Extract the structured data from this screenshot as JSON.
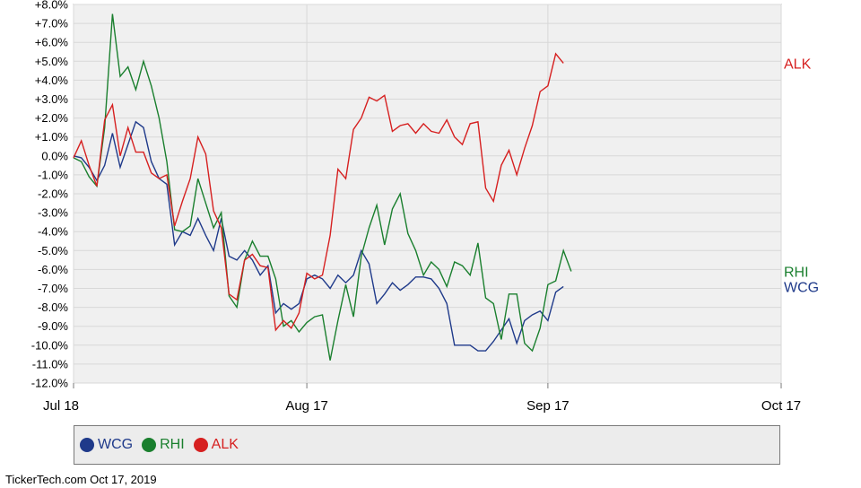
{
  "chart_data": {
    "type": "line",
    "ylim": [
      -12,
      8
    ],
    "y_ticks": [
      "+8.0%",
      "+7.0%",
      "+6.0%",
      "+5.0%",
      "+4.0%",
      "+3.0%",
      "+2.0%",
      "+1.0%",
      "0.0%",
      "-1.0%",
      "-2.0%",
      "-3.0%",
      "-4.0%",
      "-5.0%",
      "-6.0%",
      "-7.0%",
      "-8.0%",
      "-9.0%",
      "-10.0%",
      "-11.0%",
      "-12.0%"
    ],
    "x_ticks": [
      {
        "label": "Jul 18",
        "x": 0
      },
      {
        "label": "Aug 17",
        "x": 30
      },
      {
        "label": "Sep 17",
        "x": 61
      },
      {
        "label": "Oct 17",
        "x": 91
      }
    ],
    "grid": true,
    "series": [
      {
        "name": "WCG",
        "color": "#1f3a8a",
        "points": [
          [
            0,
            0
          ],
          [
            1,
            -0.1
          ],
          [
            2,
            -0.6
          ],
          [
            3,
            -1.3
          ],
          [
            4,
            -0.5
          ],
          [
            5,
            1.2
          ],
          [
            6,
            -0.6
          ],
          [
            7,
            0.6
          ],
          [
            8,
            1.8
          ],
          [
            9,
            1.5
          ],
          [
            10,
            -0.3
          ],
          [
            11,
            -1.2
          ],
          [
            12,
            -1.5
          ],
          [
            13,
            -4.7
          ],
          [
            14,
            -4.0
          ],
          [
            15,
            -4.2
          ],
          [
            16,
            -3.3
          ],
          [
            17,
            -4.2
          ],
          [
            18,
            -5.0
          ],
          [
            19,
            -3.3
          ],
          [
            20,
            -5.3
          ],
          [
            21,
            -5.5
          ],
          [
            22,
            -5.0
          ],
          [
            23,
            -5.5
          ],
          [
            24,
            -6.3
          ],
          [
            25,
            -5.8
          ],
          [
            26,
            -8.3
          ],
          [
            27,
            -7.8
          ],
          [
            28,
            -8.1
          ],
          [
            29,
            -7.8
          ],
          [
            30,
            -6.5
          ],
          [
            31,
            -6.3
          ],
          [
            32,
            -6.5
          ],
          [
            33,
            -7.0
          ],
          [
            34,
            -6.3
          ],
          [
            35,
            -6.7
          ],
          [
            36,
            -6.3
          ],
          [
            37,
            -5.0
          ],
          [
            38,
            -5.7
          ],
          [
            39,
            -7.8
          ],
          [
            40,
            -7.3
          ],
          [
            41,
            -6.7
          ],
          [
            42,
            -7.1
          ],
          [
            43,
            -6.8
          ],
          [
            44,
            -6.4
          ],
          [
            45,
            -6.4
          ],
          [
            46,
            -6.5
          ],
          [
            47,
            -7.0
          ],
          [
            48,
            -7.8
          ],
          [
            49,
            -10.0
          ],
          [
            50,
            -10.0
          ],
          [
            51,
            -10.0
          ],
          [
            52,
            -10.3
          ],
          [
            53,
            -10.3
          ],
          [
            54,
            -9.8
          ],
          [
            55,
            -9.2
          ],
          [
            56,
            -8.6
          ],
          [
            57,
            -9.9
          ],
          [
            58,
            -8.7
          ],
          [
            59,
            -8.4
          ],
          [
            60,
            -8.2
          ],
          [
            61,
            -8.7
          ],
          [
            62,
            -7.2
          ],
          [
            63,
            -6.9
          ]
        ]
      },
      {
        "name": "RHI",
        "color": "#1a7f2e",
        "points": [
          [
            0,
            -0.1
          ],
          [
            1,
            -0.3
          ],
          [
            2,
            -1.1
          ],
          [
            3,
            -1.6
          ],
          [
            4,
            1.5
          ],
          [
            5,
            7.5
          ],
          [
            6,
            4.2
          ],
          [
            7,
            4.7
          ],
          [
            8,
            3.5
          ],
          [
            9,
            5.0
          ],
          [
            10,
            3.7
          ],
          [
            11,
            2.0
          ],
          [
            12,
            -0.3
          ],
          [
            13,
            -3.9
          ],
          [
            14,
            -4.0
          ],
          [
            15,
            -3.7
          ],
          [
            16,
            -1.2
          ],
          [
            17,
            -2.5
          ],
          [
            18,
            -3.8
          ],
          [
            19,
            -3.0
          ],
          [
            20,
            -7.4
          ],
          [
            21,
            -8.0
          ],
          [
            22,
            -5.5
          ],
          [
            23,
            -4.5
          ],
          [
            24,
            -5.3
          ],
          [
            25,
            -5.3
          ],
          [
            26,
            -6.5
          ],
          [
            27,
            -9.0
          ],
          [
            28,
            -8.7
          ],
          [
            29,
            -9.3
          ],
          [
            30,
            -8.8
          ],
          [
            31,
            -8.5
          ],
          [
            32,
            -8.4
          ],
          [
            33,
            -10.8
          ],
          [
            34,
            -8.7
          ],
          [
            35,
            -6.8
          ],
          [
            36,
            -8.5
          ],
          [
            37,
            -5.3
          ],
          [
            38,
            -3.8
          ],
          [
            39,
            -2.6
          ],
          [
            40,
            -4.7
          ],
          [
            41,
            -2.8
          ],
          [
            42,
            -2.0
          ],
          [
            43,
            -4.1
          ],
          [
            44,
            -5.0
          ],
          [
            45,
            -6.3
          ],
          [
            46,
            -5.6
          ],
          [
            47,
            -6.0
          ],
          [
            48,
            -6.9
          ],
          [
            49,
            -5.6
          ],
          [
            50,
            -5.8
          ],
          [
            51,
            -6.3
          ],
          [
            52,
            -4.6
          ],
          [
            53,
            -7.5
          ],
          [
            54,
            -7.8
          ],
          [
            55,
            -9.7
          ],
          [
            56,
            -7.3
          ],
          [
            57,
            -7.3
          ],
          [
            58,
            -9.9
          ],
          [
            59,
            -10.3
          ],
          [
            60,
            -9.1
          ],
          [
            61,
            -6.8
          ],
          [
            62,
            -6.6
          ],
          [
            63,
            -5.0
          ],
          [
            64,
            -6.1
          ]
        ]
      },
      {
        "name": "ALK",
        "color": "#d62020",
        "points": [
          [
            0,
            -0.1
          ],
          [
            1,
            0.8
          ],
          [
            2,
            -0.5
          ],
          [
            3,
            -1.6
          ],
          [
            4,
            1.9
          ],
          [
            5,
            2.7
          ],
          [
            6,
            0.0
          ],
          [
            7,
            1.5
          ],
          [
            8,
            0.2
          ],
          [
            9,
            0.2
          ],
          [
            10,
            -0.9
          ],
          [
            11,
            -1.2
          ],
          [
            12,
            -1.0
          ],
          [
            13,
            -3.7
          ],
          [
            14,
            -2.4
          ],
          [
            15,
            -1.2
          ],
          [
            16,
            1.0
          ],
          [
            17,
            0.1
          ],
          [
            18,
            -2.9
          ],
          [
            19,
            -3.8
          ],
          [
            20,
            -7.3
          ],
          [
            21,
            -7.6
          ],
          [
            22,
            -5.5
          ],
          [
            23,
            -5.2
          ],
          [
            24,
            -5.8
          ],
          [
            25,
            -5.9
          ],
          [
            26,
            -9.2
          ],
          [
            27,
            -8.7
          ],
          [
            28,
            -9.1
          ],
          [
            29,
            -8.3
          ],
          [
            30,
            -6.2
          ],
          [
            31,
            -6.5
          ],
          [
            32,
            -6.3
          ],
          [
            33,
            -4.2
          ],
          [
            34,
            -0.7
          ],
          [
            35,
            -1.2
          ],
          [
            36,
            1.4
          ],
          [
            37,
            2.0
          ],
          [
            38,
            3.1
          ],
          [
            39,
            2.9
          ],
          [
            40,
            3.2
          ],
          [
            41,
            1.3
          ],
          [
            42,
            1.6
          ],
          [
            43,
            1.7
          ],
          [
            44,
            1.2
          ],
          [
            45,
            1.7
          ],
          [
            46,
            1.3
          ],
          [
            47,
            1.2
          ],
          [
            48,
            1.9
          ],
          [
            49,
            1.0
          ],
          [
            50,
            0.6
          ],
          [
            51,
            1.7
          ],
          [
            52,
            1.8
          ],
          [
            53,
            -1.7
          ],
          [
            54,
            -2.4
          ],
          [
            55,
            -0.5
          ],
          [
            56,
            0.3
          ],
          [
            57,
            -1.0
          ],
          [
            58,
            0.4
          ],
          [
            59,
            1.6
          ],
          [
            60,
            3.4
          ],
          [
            61,
            3.7
          ],
          [
            62,
            5.4
          ],
          [
            63,
            4.9
          ]
        ]
      }
    ]
  },
  "legend": {
    "items": [
      {
        "name": "WCG",
        "color": "#1f3a8a"
      },
      {
        "name": "RHI",
        "color": "#1a7f2e"
      },
      {
        "name": "ALK",
        "color": "#d62020"
      }
    ]
  },
  "footer": "TickerTech.com  Oct 17, 2019"
}
